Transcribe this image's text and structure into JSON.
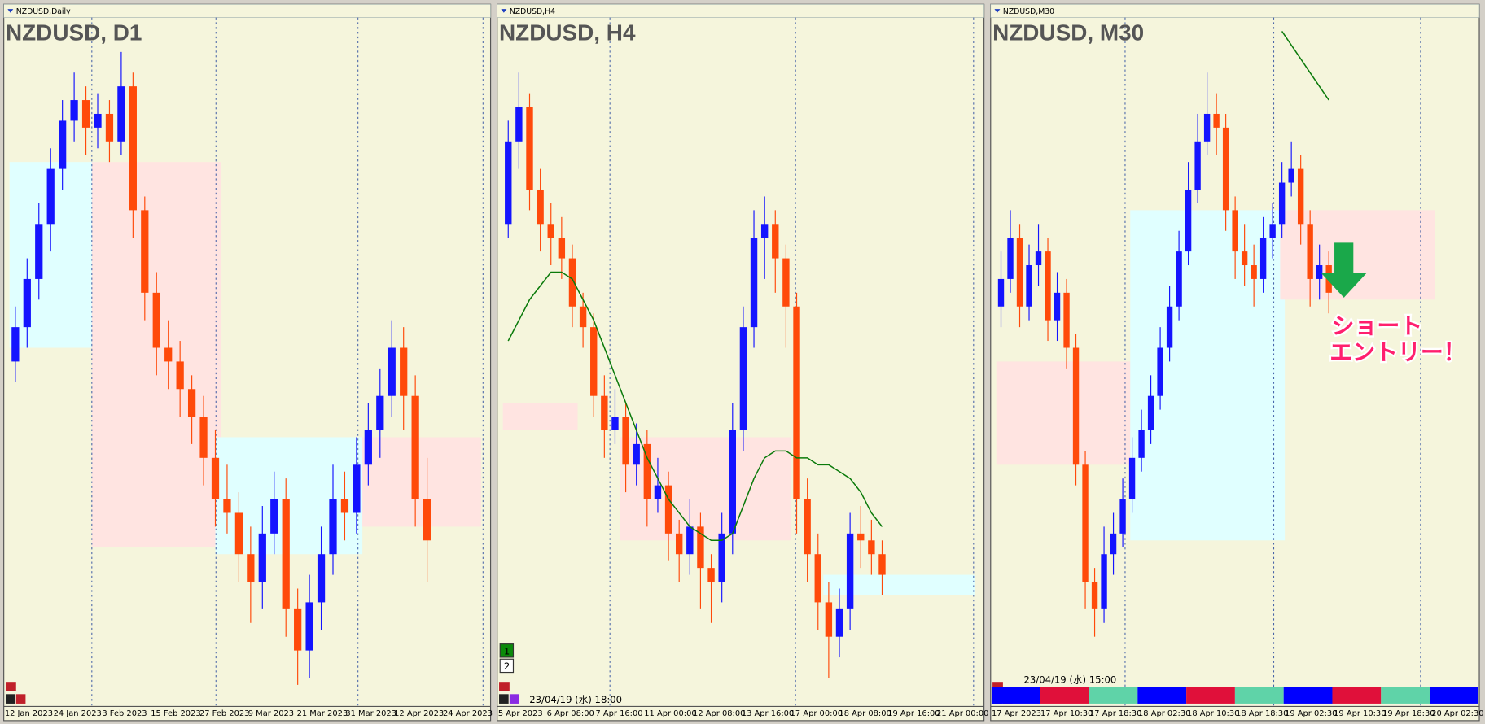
{
  "chart_data": [
    {
      "type": "candlestick",
      "header": "NZDUSD,Daily",
      "title": "NZDUSD, D1",
      "x_labels": [
        "12 Jan 2023",
        "24 Jan 2023",
        "3 Feb 2023",
        "15 Feb 2023",
        "27 Feb 2023",
        "9 Mar 2023",
        "21 Mar 2023",
        "31 Mar 2023",
        "12 Apr 2023",
        "24 Apr 2023"
      ],
      "ylim": [
        0,
        100
      ],
      "up_color": "#1414ff",
      "down_color": "#ff4a0a",
      "ma_color": "#0a7a0a",
      "candles": [
        [
          50,
          58,
          47,
          55
        ],
        [
          55,
          65,
          52,
          62
        ],
        [
          62,
          73,
          59,
          70
        ],
        [
          70,
          81,
          66,
          78
        ],
        [
          78,
          88,
          75,
          85
        ],
        [
          85,
          92,
          82,
          88
        ],
        [
          88,
          90,
          80,
          84
        ],
        [
          84,
          89,
          81,
          86
        ],
        [
          86,
          88,
          79,
          82
        ],
        [
          82,
          95,
          80,
          90
        ],
        [
          90,
          92,
          68,
          72
        ],
        [
          72,
          74,
          56,
          60
        ],
        [
          60,
          63,
          48,
          52
        ],
        [
          52,
          56,
          46,
          50
        ],
        [
          50,
          53,
          42,
          46
        ],
        [
          46,
          48,
          38,
          42
        ],
        [
          42,
          45,
          32,
          36
        ],
        [
          36,
          40,
          26,
          30
        ],
        [
          30,
          35,
          25,
          28
        ],
        [
          28,
          31,
          18,
          22
        ],
        [
          22,
          26,
          12,
          18
        ],
        [
          18,
          29,
          14,
          25
        ],
        [
          25,
          34,
          22,
          30
        ],
        [
          30,
          33,
          10,
          14
        ],
        [
          14,
          17,
          3,
          8
        ],
        [
          8,
          19,
          4,
          15
        ],
        [
          15,
          26,
          11,
          22
        ],
        [
          22,
          35,
          19,
          30
        ],
        [
          30,
          34,
          24,
          28
        ],
        [
          28,
          39,
          25,
          35
        ],
        [
          35,
          44,
          32,
          40
        ],
        [
          40,
          49,
          36,
          45
        ],
        [
          45,
          56,
          42,
          52
        ],
        [
          52,
          55,
          40,
          45
        ],
        [
          45,
          48,
          26,
          30
        ],
        [
          30,
          36,
          18,
          24
        ]
      ],
      "zones": [
        {
          "from": 0,
          "to": 6.5,
          "low": 52,
          "high": 79,
          "color": "#e0ffff"
        },
        {
          "from": 7,
          "to": 17,
          "low": 23,
          "high": 79,
          "color": "#ffe4e1"
        },
        {
          "from": 17.5,
          "to": 29,
          "low": 22,
          "high": 39,
          "color": "#e0ffff"
        },
        {
          "from": 30,
          "to": 39.5,
          "low": 26,
          "high": 39,
          "color": "#ffe4e1"
        }
      ]
    },
    {
      "type": "candlestick",
      "header": "NZDUSD,H4",
      "title": "NZDUSD, H4",
      "x_labels": [
        "5 Apr 2023",
        "6 Apr 08:00",
        "7 Apr 16:00",
        "11 Apr 00:00",
        "12 Apr 08:00",
        "13 Apr 16:00",
        "17 Apr 00:00",
        "18 Apr 08:00",
        "19 Apr 16:00",
        "21 Apr 00:00"
      ],
      "ylim": [
        0,
        100
      ],
      "up_color": "#1414ff",
      "down_color": "#ff4a0a",
      "ma_color": "#0a7a0a",
      "cursor_time": "23/04/19 (水) 18:00",
      "buttons": [
        "1",
        "2"
      ],
      "candles": [
        [
          70,
          85,
          68,
          82
        ],
        [
          82,
          92,
          78,
          87
        ],
        [
          87,
          89,
          72,
          75
        ],
        [
          75,
          78,
          66,
          70
        ],
        [
          70,
          73,
          64,
          68
        ],
        [
          68,
          71,
          62,
          65
        ],
        [
          65,
          67,
          55,
          58
        ],
        [
          58,
          60,
          52,
          55
        ],
        [
          55,
          57,
          42,
          45
        ],
        [
          45,
          48,
          36,
          40
        ],
        [
          40,
          46,
          38,
          42
        ],
        [
          42,
          44,
          31,
          35
        ],
        [
          35,
          41,
          32,
          38
        ],
        [
          38,
          40,
          26,
          30
        ],
        [
          30,
          36,
          28,
          32
        ],
        [
          32,
          34,
          21,
          25
        ],
        [
          25,
          27,
          18,
          22
        ],
        [
          22,
          30,
          19,
          26
        ],
        [
          26,
          28,
          14,
          20
        ],
        [
          20,
          22,
          12,
          18
        ],
        [
          18,
          28,
          15,
          25
        ],
        [
          25,
          44,
          22,
          40
        ],
        [
          40,
          58,
          37,
          55
        ],
        [
          55,
          72,
          52,
          68
        ],
        [
          68,
          74,
          62,
          70
        ],
        [
          70,
          72,
          60,
          65
        ],
        [
          65,
          67,
          52,
          58
        ],
        [
          58,
          60,
          25,
          30
        ],
        [
          30,
          33,
          18,
          22
        ],
        [
          22,
          25,
          11,
          15
        ],
        [
          15,
          18,
          4,
          10
        ],
        [
          10,
          17,
          7,
          14
        ],
        [
          14,
          28,
          11,
          25
        ],
        [
          25,
          29,
          20,
          24
        ],
        [
          24,
          27,
          19,
          22
        ],
        [
          22,
          24,
          16,
          19
        ]
      ],
      "ma": [
        53,
        56,
        59,
        61,
        63,
        63,
        62,
        59,
        56,
        52,
        48,
        44,
        40,
        36,
        33,
        30,
        28,
        26,
        25,
        24,
        24,
        25,
        29,
        33,
        36,
        37,
        37,
        36,
        36,
        35,
        35,
        34,
        33,
        31,
        28,
        26
      ],
      "zones": [
        {
          "from": 0,
          "to": 6,
          "low": 40,
          "high": 44,
          "color": "#ffe4e1"
        },
        {
          "from": 11,
          "to": 26,
          "low": 24,
          "high": 39,
          "color": "#ffe4e1"
        },
        {
          "from": 30,
          "to": 45,
          "low": 16,
          "high": 19,
          "color": "#e0ffff"
        }
      ]
    },
    {
      "type": "candlestick",
      "header": "NZDUSD,M30",
      "title": "NZDUSD, M30",
      "x_labels": [
        "17 Apr 2023",
        "17 Apr 10:30",
        "17 Apr 18:30",
        "18 Apr 02:30",
        "18 Apr 10:30",
        "18 Apr 18:30",
        "19 Apr 02:30",
        "19 Apr 10:30",
        "19 Apr 18:30",
        "20 Apr 02:30"
      ],
      "ylim": [
        0,
        100
      ],
      "up_color": "#1414ff",
      "down_color": "#ff4a0a",
      "ma_color": "#0a7a0a",
      "cursor_time": "23/04/19 (水) 15:00",
      "annotation": [
        "ショート",
        "エントリー！"
      ],
      "candles": [
        [
          58,
          66,
          55,
          62
        ],
        [
          62,
          72,
          60,
          68
        ],
        [
          68,
          70,
          55,
          58
        ],
        [
          58,
          67,
          56,
          64
        ],
        [
          64,
          70,
          61,
          66
        ],
        [
          66,
          68,
          53,
          56
        ],
        [
          56,
          63,
          53,
          60
        ],
        [
          60,
          62,
          49,
          52
        ],
        [
          52,
          54,
          32,
          35
        ],
        [
          35,
          37,
          14,
          18
        ],
        [
          18,
          20,
          10,
          14
        ],
        [
          14,
          26,
          12,
          22
        ],
        [
          22,
          28,
          19,
          25
        ],
        [
          25,
          33,
          23,
          30
        ],
        [
          30,
          39,
          28,
          36
        ],
        [
          36,
          43,
          34,
          40
        ],
        [
          40,
          48,
          38,
          45
        ],
        [
          45,
          55,
          43,
          52
        ],
        [
          52,
          61,
          50,
          58
        ],
        [
          58,
          69,
          56,
          66
        ],
        [
          66,
          79,
          64,
          75
        ],
        [
          75,
          86,
          73,
          82
        ],
        [
          82,
          92,
          80,
          86
        ],
        [
          86,
          89,
          80,
          84
        ],
        [
          84,
          86,
          69,
          72
        ],
        [
          72,
          74,
          62,
          66
        ],
        [
          66,
          70,
          61,
          64
        ],
        [
          64,
          67,
          58,
          62
        ],
        [
          62,
          71,
          60,
          68
        ],
        [
          68,
          73,
          65,
          70
        ],
        [
          70,
          79,
          68,
          76
        ],
        [
          76,
          82,
          74,
          78
        ],
        [
          78,
          80,
          67,
          70
        ],
        [
          70,
          72,
          58,
          62
        ],
        [
          62,
          67,
          59,
          64
        ],
        [
          64,
          66,
          57,
          60
        ]
      ],
      "ma": [
        null,
        null,
        null,
        null,
        null,
        null,
        null,
        null,
        null,
        null,
        null,
        null,
        null,
        null,
        null,
        null,
        null,
        null,
        null,
        null,
        null,
        null,
        null,
        null,
        null,
        null,
        null,
        null,
        null,
        null,
        98,
        96,
        94,
        92,
        90,
        88
      ],
      "zones": [
        {
          "from": 0,
          "to": 14,
          "low": 35,
          "high": 50,
          "color": "#ffe4e1"
        },
        {
          "from": 14.3,
          "to": 29.8,
          "low": 24,
          "high": 72,
          "color": "#e0ffff"
        },
        {
          "from": 30.3,
          "to": 45.8,
          "low": 59,
          "high": 72,
          "color": "#ffe4e1"
        }
      ]
    }
  ]
}
